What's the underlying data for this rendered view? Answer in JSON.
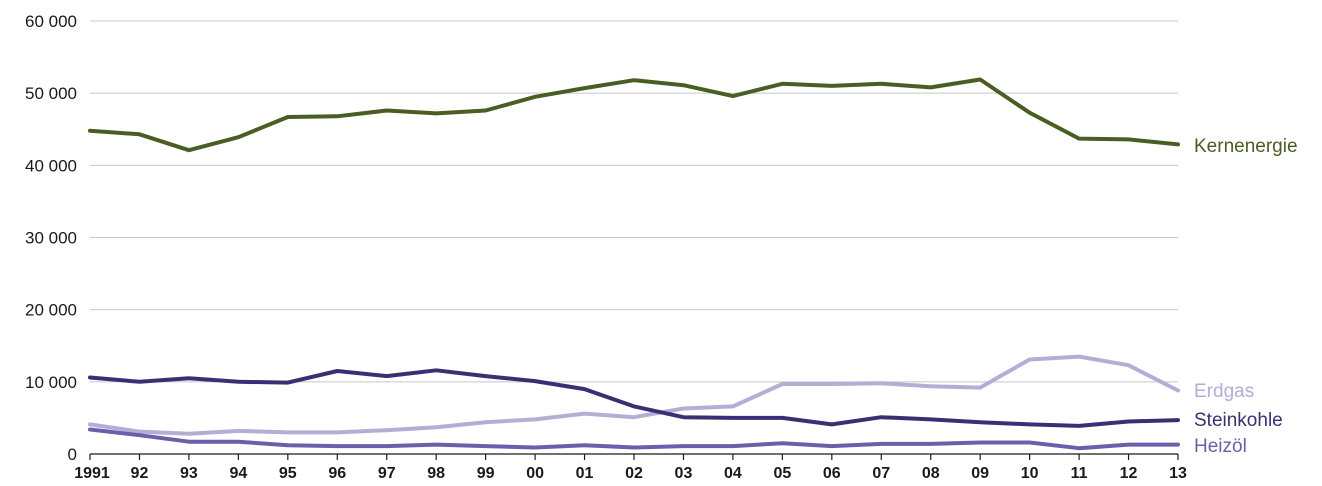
{
  "chart_data": {
    "type": "line",
    "x": [
      "1991",
      "92",
      "93",
      "94",
      "95",
      "96",
      "97",
      "98",
      "99",
      "00",
      "01",
      "02",
      "03",
      "04",
      "05",
      "06",
      "07",
      "08",
      "09",
      "10",
      "11",
      "12",
      "13"
    ],
    "ylim": [
      0,
      60000
    ],
    "y_ticks": [
      {
        "value": 0,
        "label": "0"
      },
      {
        "value": 10000,
        "label": "10 000"
      },
      {
        "value": 20000,
        "label": "20 000"
      },
      {
        "value": 30000,
        "label": "30 000"
      },
      {
        "value": 40000,
        "label": "40 000"
      },
      {
        "value": 50000,
        "label": "50 000"
      },
      {
        "value": 60000,
        "label": "60 000"
      }
    ],
    "grid": true,
    "legend": "direct labels at right end of lines",
    "series": [
      {
        "name": "Kernenergie",
        "color": "#4a5e23",
        "values": [
          44800,
          44300,
          42100,
          43900,
          46700,
          46800,
          47600,
          47200,
          47600,
          49500,
          50700,
          51800,
          51100,
          49600,
          51300,
          51000,
          51300,
          50800,
          51900,
          47300,
          43700,
          43600,
          42900
        ]
      },
      {
        "name": "Erdgas",
        "color": "#b3aed6",
        "values": [
          4100,
          3100,
          2800,
          3200,
          3000,
          3000,
          3300,
          3700,
          4400,
          4800,
          5600,
          5100,
          6300,
          6600,
          9700,
          9700,
          9800,
          9400,
          9200,
          13100,
          13500,
          12300,
          8800
        ]
      },
      {
        "name": "Steinkohle",
        "color": "#3d2e73",
        "values": [
          10600,
          10000,
          10500,
          10000,
          9900,
          11500,
          10800,
          11600,
          10800,
          10100,
          9000,
          6600,
          5100,
          5000,
          5000,
          4100,
          5100,
          4800,
          4400,
          4100,
          3900,
          4500,
          4700
        ]
      },
      {
        "name": "Heizöl",
        "color": "#6b5fab",
        "values": [
          3400,
          2600,
          1700,
          1700,
          1200,
          1100,
          1100,
          1300,
          1100,
          900,
          1200,
          900,
          1100,
          1100,
          1500,
          1100,
          1400,
          1400,
          1600,
          1600,
          800,
          1300,
          1300
        ]
      }
    ]
  }
}
